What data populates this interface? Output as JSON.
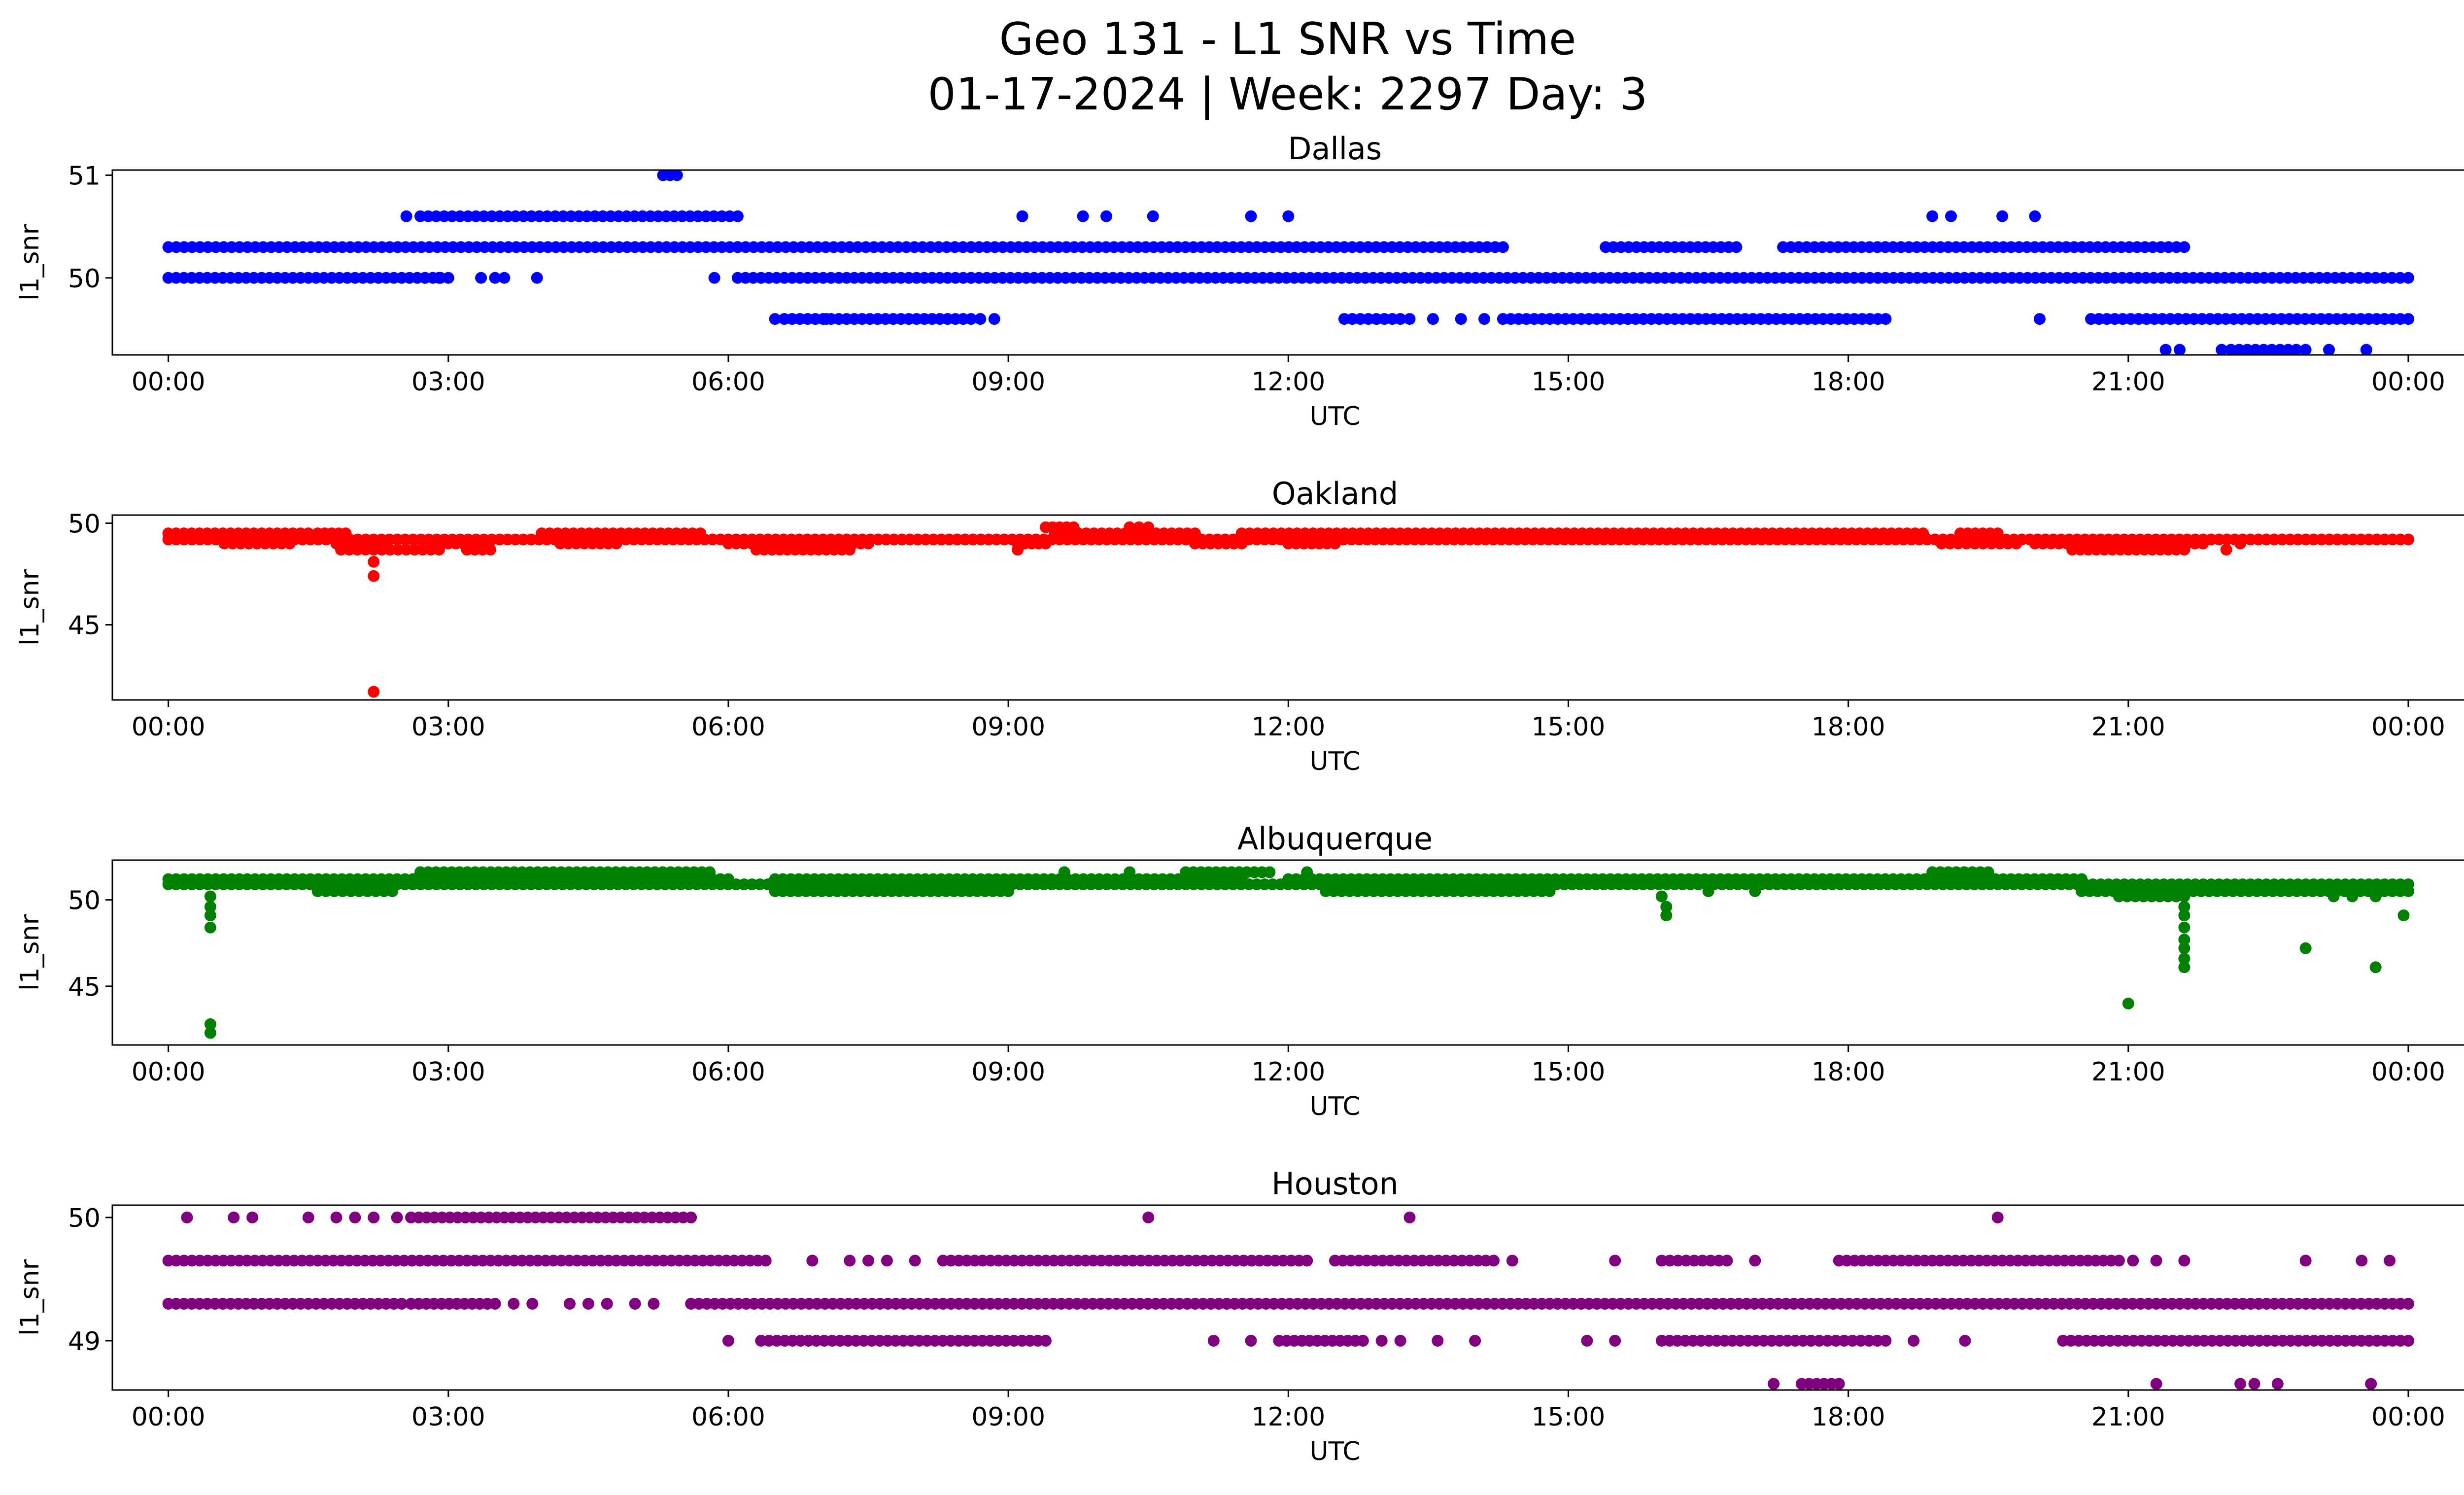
{
  "figure": {
    "title_line1": "Geo 131 - L1 SNR vs Time",
    "title_line2": "01-17-2024 | Week: 2297 Day: 3"
  },
  "chart_data": [
    {
      "type": "scatter",
      "title": "Dallas",
      "xlabel": "UTC",
      "ylabel": "l1_snr",
      "color": "#0000ff",
      "xticks": [
        "00:00",
        "03:00",
        "06:00",
        "09:00",
        "12:00",
        "15:00",
        "18:00",
        "21:00",
        "00:00"
      ],
      "xlim_hours": [
        -0.6,
        25.6
      ],
      "ylim": [
        49.25,
        51.05
      ],
      "yticks": [
        50,
        51
      ],
      "series": [
        {
          "y": 50.3,
          "segments": [
            [
              0.0,
              6.1
            ],
            [
              6.1,
              7.3
            ],
            [
              7.3,
              8.6
            ],
            [
              8.6,
              12.6
            ],
            [
              12.6,
              14.3
            ],
            [
              15.4,
              16.8
            ],
            [
              17.3,
              21.6
            ]
          ],
          "points": [
            21.35
          ]
        },
        {
          "y": 50.0,
          "segments": [
            [
              0.0,
              2.75
            ],
            [
              2.75,
              3.0
            ],
            [
              6.1,
              8.6
            ],
            [
              8.6,
              23.3
            ],
            [
              23.3,
              24.0
            ]
          ],
          "points": [
            2.9,
            3.35,
            3.5,
            3.6,
            3.95,
            5.85
          ]
        },
        {
          "y": 50.6,
          "segments": [
            [
              2.7,
              6.1
            ]
          ],
          "points": [
            2.55,
            9.15,
            9.8,
            10.05,
            10.55,
            11.6,
            12.0,
            18.9,
            19.1,
            19.65,
            20.0
          ]
        },
        {
          "y": 49.6,
          "segments": [
            [
              6.6,
              8.6
            ],
            [
              12.6,
              13.2
            ],
            [
              14.3,
              18.4
            ],
            [
              20.6,
              24.0
            ]
          ],
          "points": [
            6.5,
            7.05,
            8.7,
            8.85,
            13.3,
            13.55,
            13.85,
            14.1,
            20.05
          ]
        },
        {
          "y": 49.3,
          "segments": [
            [
              22.1,
              22.8
            ]
          ],
          "points": [
            21.4,
            21.55,
            22.0,
            22.9,
            23.15,
            23.55
          ]
        },
        {
          "y": 51.0,
          "segments": [
            [
              5.3,
              5.45
            ]
          ],
          "points": []
        }
      ]
    },
    {
      "type": "scatter",
      "title": "Oakland",
      "xlabel": "UTC",
      "ylabel": "l1_snr",
      "color": "#ff0000",
      "xticks": [
        "00:00",
        "03:00",
        "06:00",
        "09:00",
        "12:00",
        "15:00",
        "18:00",
        "21:00",
        "00:00"
      ],
      "xlim_hours": [
        -0.6,
        25.6
      ],
      "ylim": [
        41.3,
        50.4
      ],
      "yticks": [
        45,
        50
      ],
      "series": [
        {
          "y": 49.5,
          "segments": [
            [
              0.0,
              1.5
            ],
            [
              1.6,
              1.9
            ],
            [
              4.0,
              5.7
            ],
            [
              9.5,
              11.0
            ],
            [
              11.5,
              18.8
            ],
            [
              19.2,
              19.6
            ]
          ],
          "points": []
        },
        {
          "y": 49.2,
          "segments": [
            [
              0.0,
              24.0
            ]
          ],
          "points": []
        },
        {
          "y": 49.0,
          "segments": [
            [
              0.6,
              1.3
            ],
            [
              1.8,
              2.3
            ],
            [
              3.0,
              3.4
            ],
            [
              4.2,
              4.8
            ],
            [
              6.0,
              7.5
            ],
            [
              9.1,
              9.4
            ],
            [
              11.0,
              11.5
            ],
            [
              12.0,
              12.5
            ],
            [
              19.0,
              19.8
            ],
            [
              20.0,
              21.8
            ]
          ],
          "points": [
            22.2
          ]
        },
        {
          "y": 48.7,
          "segments": [
            [
              1.85,
              2.9
            ],
            [
              3.2,
              3.45
            ],
            [
              6.3,
              7.3
            ],
            [
              20.4,
              21.6
            ]
          ],
          "points": [
            9.1,
            22.05
          ]
        },
        {
          "y": 49.8,
          "segments": [
            [
              9.4,
              9.7
            ],
            [
              10.3,
              10.5
            ]
          ],
          "points": []
        },
        {
          "y": 48.1,
          "segments": [],
          "points": [
            2.2
          ]
        },
        {
          "y": 47.4,
          "segments": [],
          "points": [
            2.2
          ]
        },
        {
          "y": 41.7,
          "segments": [],
          "points": [
            2.2
          ]
        }
      ]
    },
    {
      "type": "scatter",
      "title": "Albuquerque",
      "xlabel": "UTC",
      "ylabel": "l1_snr",
      "color": "#008000",
      "xticks": [
        "00:00",
        "03:00",
        "06:00",
        "09:00",
        "12:00",
        "15:00",
        "18:00",
        "21:00",
        "00:00"
      ],
      "xlim_hours": [
        -0.6,
        25.6
      ],
      "ylim": [
        41.6,
        52.3
      ],
      "yticks": [
        45,
        50
      ],
      "series": [
        {
          "y": 51.2,
          "segments": [
            [
              0.0,
              6.0
            ],
            [
              6.5,
              11.5
            ],
            [
              12.0,
              20.5
            ]
          ],
          "points": []
        },
        {
          "y": 50.9,
          "segments": [
            [
              0.0,
              24.0
            ]
          ],
          "points": []
        },
        {
          "y": 51.6,
          "segments": [
            [
              2.7,
              5.8
            ],
            [
              10.9,
              11.8
            ],
            [
              18.9,
              19.5
            ]
          ],
          "points": [
            9.6,
            10.3,
            12.2
          ]
        },
        {
          "y": 50.5,
          "segments": [
            [
              1.6,
              2.4
            ],
            [
              6.5,
              9.0
            ],
            [
              12.4,
              14.8
            ],
            [
              20.5,
              24.0
            ]
          ],
          "points": [
            16.5,
            17.0
          ]
        },
        {
          "y": 50.2,
          "segments": [
            [
              20.9,
              21.6
            ]
          ],
          "points": [
            0.45,
            16.0,
            23.2,
            23.4,
            23.65
          ]
        },
        {
          "y": 49.6,
          "segments": [],
          "points": [
            0.45,
            16.05,
            21.6
          ]
        },
        {
          "y": 49.1,
          "segments": [],
          "points": [
            0.45,
            16.05,
            21.6,
            23.95
          ]
        },
        {
          "y": 48.4,
          "segments": [],
          "points": [
            0.45,
            21.6
          ]
        },
        {
          "y": 47.7,
          "segments": [],
          "points": [
            21.6
          ]
        },
        {
          "y": 47.2,
          "segments": [],
          "points": [
            21.6,
            22.9
          ]
        },
        {
          "y": 46.6,
          "segments": [],
          "points": [
            21.6
          ]
        },
        {
          "y": 46.1,
          "segments": [],
          "points": [
            21.6,
            23.65
          ]
        },
        {
          "y": 44.0,
          "segments": [],
          "points": [
            21.0
          ]
        },
        {
          "y": 42.8,
          "segments": [],
          "points": [
            0.45
          ]
        },
        {
          "y": 42.3,
          "segments": [],
          "points": [
            0.45
          ]
        }
      ]
    },
    {
      "type": "scatter",
      "title": "Houston",
      "xlabel": "UTC",
      "ylabel": "l1_snr",
      "color": "#800080",
      "xticks": [
        "00:00",
        "03:00",
        "06:00",
        "09:00",
        "12:00",
        "15:00",
        "18:00",
        "21:00",
        "00:00"
      ],
      "xlim_hours": [
        -0.6,
        25.6
      ],
      "ylim": [
        48.6,
        50.1
      ],
      "yticks": [
        49,
        50
      ],
      "series": [
        {
          "y": 50.0,
          "segments": [
            [
              2.6,
              5.6
            ]
          ],
          "points": [
            0.2,
            0.7,
            0.9,
            1.5,
            1.8,
            2.0,
            2.2,
            2.45,
            10.5,
            13.3,
            19.6
          ]
        },
        {
          "y": 49.65,
          "segments": [
            [
              0.0,
              6.4
            ],
            [
              8.3,
              12.2
            ],
            [
              12.5,
              14.2
            ],
            [
              16.0,
              16.7
            ],
            [
              17.9,
              20.9
            ]
          ],
          "points": [
            6.9,
            7.3,
            7.5,
            7.7,
            8.0,
            14.4,
            15.5,
            17.0,
            21.05,
            21.3,
            21.6,
            22.9,
            23.5,
            23.8
          ]
        },
        {
          "y": 49.3,
          "segments": [
            [
              0.0,
              2.5
            ],
            [
              2.6,
              3.5
            ],
            [
              5.6,
              24.0
            ]
          ],
          "points": [
            3.7,
            3.9,
            4.3,
            4.5,
            4.7,
            5.0,
            5.2
          ]
        },
        {
          "y": 49.0,
          "segments": [
            [
              6.35,
              9.4
            ],
            [
              11.9,
              12.8
            ],
            [
              16.0,
              17.6
            ],
            [
              17.6,
              18.4
            ],
            [
              20.3,
              24.0
            ]
          ],
          "points": [
            6.0,
            11.2,
            11.6,
            13.0,
            13.2,
            13.6,
            14.0,
            15.2,
            15.5,
            18.7,
            19.25
          ]
        },
        {
          "y": 48.65,
          "segments": [
            [
              17.5,
              17.9
            ]
          ],
          "points": [
            17.2,
            21.3,
            22.2,
            22.35,
            22.6,
            23.6
          ]
        }
      ]
    }
  ]
}
